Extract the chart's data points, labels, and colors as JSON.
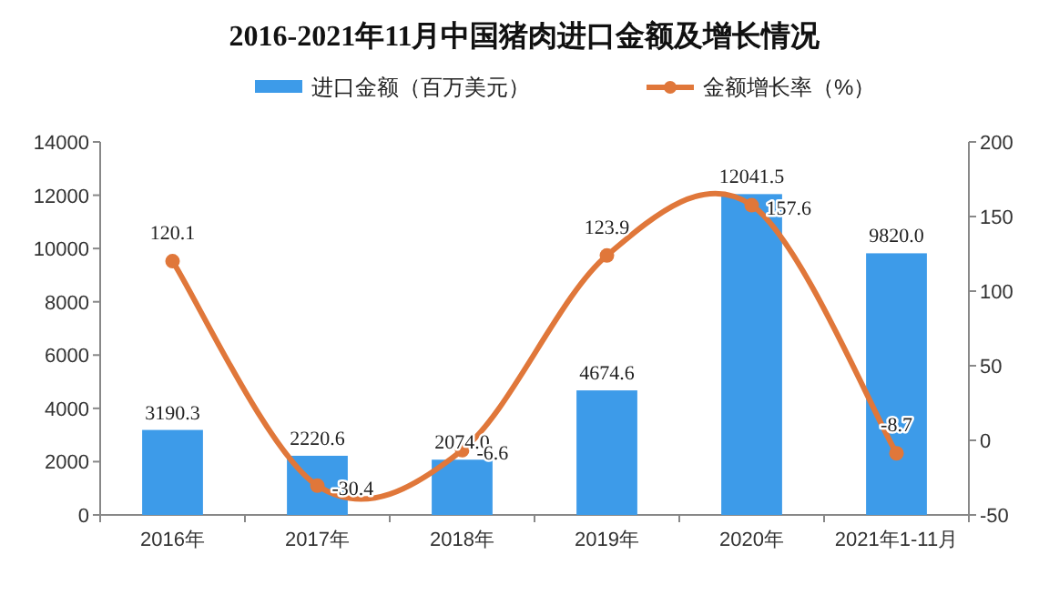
{
  "chart_data": {
    "type": "bar",
    "title": "2016-2021年11月中国猪肉进口金额及增长情况",
    "categories": [
      "2016年",
      "2017年",
      "2018年",
      "2019年",
      "2020年",
      "2021年1-11月"
    ],
    "series": [
      {
        "name": "进口金额（百万美元）",
        "color": "#3d9be9",
        "values": [
          3190.3,
          2220.6,
          2074.0,
          4674.6,
          12041.5,
          9820.0
        ],
        "value_labels": [
          "3190.3",
          "2220.6",
          "2074.0",
          "4674.6",
          "12041.5",
          "9820.0"
        ]
      },
      {
        "name": "金额增长率（%）",
        "type": "line",
        "axis": "y2",
        "color": "#e0773a",
        "marker": "circle",
        "values": [
          120.1,
          -30.4,
          -6.6,
          123.9,
          157.6,
          -8.7
        ],
        "value_labels": [
          "120.1",
          "-30.4",
          "-6.6",
          "123.9",
          "157.6",
          "-8.7"
        ]
      }
    ],
    "ylim": [
      0,
      14000
    ],
    "yticks": [
      0,
      2000,
      4000,
      6000,
      8000,
      10000,
      12000,
      14000
    ],
    "y2lim": [
      -50,
      200
    ],
    "y2ticks": [
      -50,
      0,
      50,
      100,
      150,
      200
    ],
    "legend": "top",
    "grid": false
  }
}
